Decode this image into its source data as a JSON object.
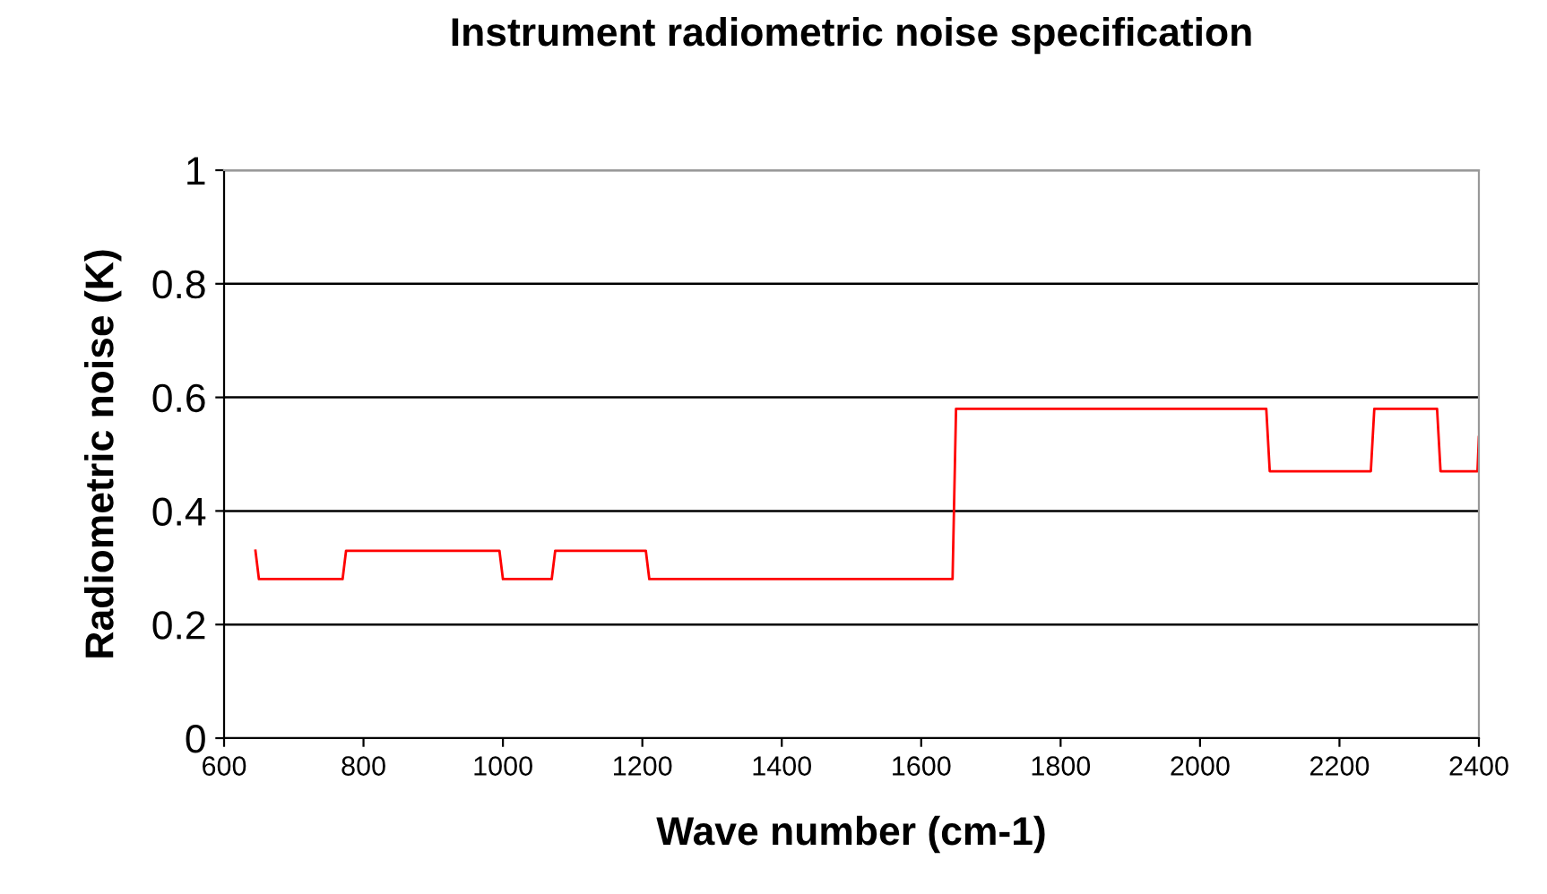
{
  "chart_data": {
    "type": "line",
    "title": "Instrument radiometric noise specification",
    "xlabel": "Wave number (cm-1)",
    "ylabel": "Radiometric noise (K)",
    "series": [
      {
        "color": "#ff0000",
        "x": [
          645,
          650,
          770,
          775,
          995,
          1000,
          1070,
          1075,
          1205,
          1210,
          1645,
          1650,
          2095,
          2100,
          2245,
          2250,
          2340,
          2345,
          2398,
          2400
        ],
        "values": [
          0.33,
          0.28,
          0.28,
          0.33,
          0.33,
          0.28,
          0.28,
          0.33,
          0.33,
          0.28,
          0.28,
          0.58,
          0.58,
          0.47,
          0.47,
          0.58,
          0.58,
          0.47,
          0.47,
          0.53
        ]
      }
    ],
    "xlim": [
      600,
      2400
    ],
    "xticks": [
      600,
      800,
      1000,
      1200,
      1400,
      1600,
      1800,
      2000,
      2200,
      2400
    ],
    "ylim": [
      0,
      1
    ],
    "yticks": [
      0,
      0.2,
      0.4,
      0.6,
      0.8,
      1
    ],
    "grid": "y",
    "legend": false,
    "marker": "none",
    "line_style": "solid"
  }
}
